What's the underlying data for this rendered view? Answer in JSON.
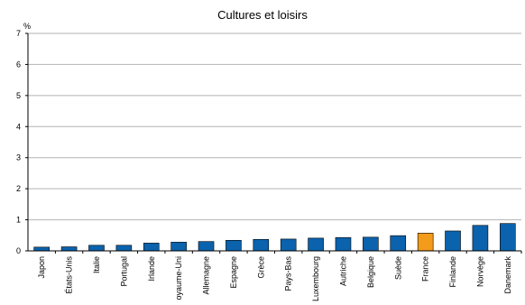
{
  "chart_data": {
    "type": "bar",
    "title": "Cultures et loisirs",
    "ylabel": "%",
    "xlabel": "",
    "categories": [
      "Japon",
      "États-Unis",
      "Italie",
      "Portugal",
      "Irlande",
      "oyaume-Uni",
      "Allemagne",
      "Espagne",
      "Grèce",
      "Pays-Bas",
      "Luxembourg",
      "Autriche",
      "Belgique",
      "Suède",
      "France",
      "Finlande",
      "Norvège",
      "Danemark"
    ],
    "values": [
      0.12,
      0.13,
      0.18,
      0.18,
      0.25,
      0.28,
      0.3,
      0.34,
      0.37,
      0.38,
      0.41,
      0.43,
      0.44,
      0.49,
      0.57,
      0.64,
      0.82,
      0.88
    ],
    "ylim": [
      0,
      7
    ],
    "yticks": [
      "0",
      "1",
      "2",
      "3",
      "4",
      "5",
      "6",
      "7"
    ],
    "grid": true,
    "colors": {
      "default": "#0b62ad",
      "highlight": "#f39b1b",
      "highlight_category": "France",
      "grid": "#b3b3b3"
    }
  }
}
